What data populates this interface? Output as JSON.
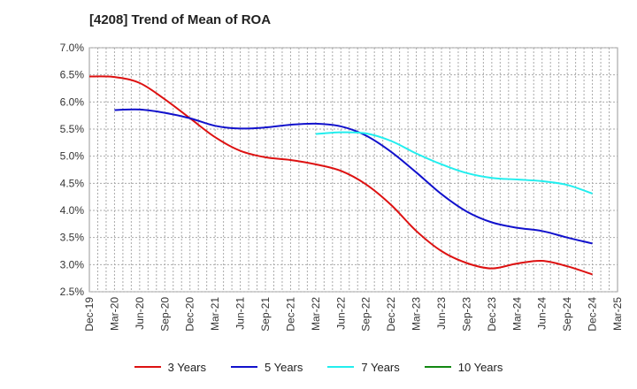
{
  "chart_data": {
    "type": "line",
    "title": "[4208]  Trend of Mean of ROA",
    "xlabel": "",
    "ylabel": "",
    "ylim": [
      2.5,
      7.0
    ],
    "y_ticks": [
      "2.5%",
      "3.0%",
      "3.5%",
      "4.0%",
      "4.5%",
      "5.0%",
      "5.5%",
      "6.0%",
      "6.5%",
      "7.0%"
    ],
    "categories": [
      "Dec-19",
      "Mar-20",
      "Jun-20",
      "Sep-20",
      "Dec-20",
      "Mar-21",
      "Jun-21",
      "Sep-21",
      "Dec-21",
      "Mar-22",
      "Jun-22",
      "Sep-22",
      "Dec-22",
      "Mar-23",
      "Jun-23",
      "Sep-23",
      "Dec-23",
      "Mar-24",
      "Jun-24",
      "Sep-24",
      "Dec-24",
      "Mar-25"
    ],
    "grid": true,
    "legend_position": "bottom",
    "series": [
      {
        "name": "3 Years",
        "color": "#dd1111",
        "values": [
          6.47,
          6.46,
          6.35,
          6.05,
          5.7,
          5.35,
          5.1,
          4.98,
          4.93,
          4.85,
          4.73,
          4.48,
          4.1,
          3.62,
          3.25,
          3.03,
          2.93,
          3.02,
          3.07,
          2.97,
          2.82,
          null
        ]
      },
      {
        "name": "5 Years",
        "color": "#1111cc",
        "values": [
          null,
          5.85,
          5.86,
          5.8,
          5.7,
          5.56,
          5.51,
          5.53,
          5.58,
          5.6,
          5.55,
          5.38,
          5.08,
          4.7,
          4.3,
          3.98,
          3.78,
          3.68,
          3.62,
          3.5,
          3.39,
          null
        ]
      },
      {
        "name": "7 Years",
        "color": "#22eeee",
        "values": [
          null,
          null,
          null,
          null,
          null,
          null,
          null,
          null,
          null,
          5.41,
          5.44,
          5.42,
          5.28,
          5.05,
          4.85,
          4.69,
          4.6,
          4.57,
          4.54,
          4.47,
          4.31,
          null
        ]
      },
      {
        "name": "10 Years",
        "color": "#118811",
        "values": [
          null,
          null,
          null,
          null,
          null,
          null,
          null,
          null,
          null,
          null,
          null,
          null,
          null,
          null,
          null,
          null,
          null,
          null,
          null,
          null,
          null,
          null
        ]
      }
    ]
  }
}
